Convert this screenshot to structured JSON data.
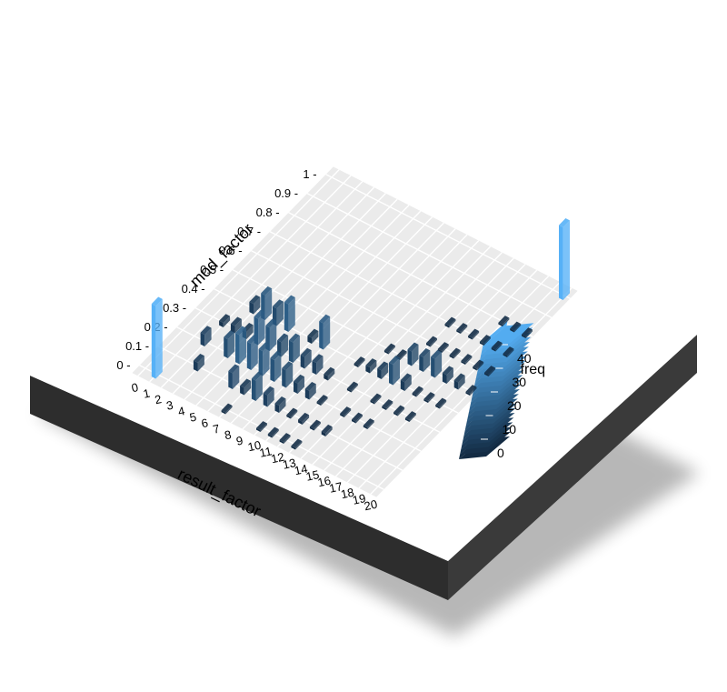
{
  "chart_data": {
    "type": "bar",
    "render": "3d-isometric",
    "xlabel": "result_factor",
    "ylabel": "mod_factor",
    "zlabel": "freq",
    "x_ticks": [
      "0",
      "1",
      "2",
      "3",
      "4",
      "5",
      "6",
      "7",
      "8",
      "9",
      "10",
      "11",
      "12",
      "13",
      "14",
      "15",
      "16",
      "17",
      "18",
      "19",
      "20"
    ],
    "y_ticks": [
      "0",
      "0.1",
      "0.2",
      "0.3",
      "0.4",
      "0.5",
      "0.6",
      "0.7",
      "0.8",
      "0.9",
      "1"
    ],
    "z_ticks": [
      "0",
      "10",
      "20",
      "30",
      "40"
    ],
    "xlim": [
      0,
      20
    ],
    "ylim": [
      0,
      1
    ],
    "zlim": [
      0,
      50
    ],
    "grid": true,
    "color_low": "#132B43",
    "color_high": "#56B1F7",
    "legend_color_scale": [
      0,
      50
    ],
    "points": [
      {
        "x": 1,
        "y": 0,
        "freq": 50
      },
      {
        "x": 2,
        "y": 0.2,
        "freq": 8
      },
      {
        "x": 2,
        "y": 0.3,
        "freq": 3
      },
      {
        "x": 3,
        "y": 0.1,
        "freq": 6
      },
      {
        "x": 3,
        "y": 0.3,
        "freq": 5
      },
      {
        "x": 3,
        "y": 0.4,
        "freq": 7
      },
      {
        "x": 4,
        "y": 0.2,
        "freq": 13
      },
      {
        "x": 4,
        "y": 0.3,
        "freq": 5
      },
      {
        "x": 4,
        "y": 0.4,
        "freq": 17
      },
      {
        "x": 5,
        "y": 0.2,
        "freq": 20
      },
      {
        "x": 5,
        "y": 0.3,
        "freq": 18
      },
      {
        "x": 5,
        "y": 0.4,
        "freq": 12
      },
      {
        "x": 6,
        "y": 0.1,
        "freq": 11
      },
      {
        "x": 6,
        "y": 0.2,
        "freq": 18
      },
      {
        "x": 6,
        "y": 0.3,
        "freq": 16
      },
      {
        "x": 6,
        "y": 0.4,
        "freq": 19
      },
      {
        "x": 7,
        "y": 0.0,
        "freq": 1
      },
      {
        "x": 7,
        "y": 0.1,
        "freq": 5
      },
      {
        "x": 7,
        "y": 0.2,
        "freq": 17
      },
      {
        "x": 7,
        "y": 0.3,
        "freq": 10
      },
      {
        "x": 8,
        "y": 0.1,
        "freq": 14
      },
      {
        "x": 8,
        "y": 0.2,
        "freq": 15
      },
      {
        "x": 8,
        "y": 0.3,
        "freq": 14
      },
      {
        "x": 8,
        "y": 0.4,
        "freq": 4
      },
      {
        "x": 9,
        "y": 0.1,
        "freq": 8
      },
      {
        "x": 9,
        "y": 0.2,
        "freq": 12
      },
      {
        "x": 9,
        "y": 0.3,
        "freq": 8
      },
      {
        "x": 9,
        "y": 0.4,
        "freq": 18
      },
      {
        "x": 10,
        "y": 0.0,
        "freq": 1
      },
      {
        "x": 10,
        "y": 0.1,
        "freq": 5
      },
      {
        "x": 10,
        "y": 0.2,
        "freq": 7
      },
      {
        "x": 10,
        "y": 0.3,
        "freq": 8
      },
      {
        "x": 11,
        "y": 0.0,
        "freq": 1
      },
      {
        "x": 11,
        "y": 0.1,
        "freq": 1
      },
      {
        "x": 11,
        "y": 0.2,
        "freq": 6
      },
      {
        "x": 11,
        "y": 0.3,
        "freq": 3
      },
      {
        "x": 12,
        "y": 0.0,
        "freq": 1
      },
      {
        "x": 12,
        "y": 0.1,
        "freq": 2
      },
      {
        "x": 12,
        "y": 0.2,
        "freq": 1
      },
      {
        "x": 12,
        "y": 0.4,
        "freq": 1
      },
      {
        "x": 13,
        "y": 0.0,
        "freq": 1
      },
      {
        "x": 13,
        "y": 0.1,
        "freq": 1
      },
      {
        "x": 13,
        "y": 0.3,
        "freq": 1
      },
      {
        "x": 13,
        "y": 0.4,
        "freq": 4
      },
      {
        "x": 13,
        "y": 0.5,
        "freq": 1
      },
      {
        "x": 14,
        "y": 0.1,
        "freq": 2
      },
      {
        "x": 14,
        "y": 0.2,
        "freq": 1
      },
      {
        "x": 14,
        "y": 0.4,
        "freq": 6
      },
      {
        "x": 14,
        "y": 0.5,
        "freq": 1
      },
      {
        "x": 15,
        "y": 0.2,
        "freq": 1
      },
      {
        "x": 15,
        "y": 0.3,
        "freq": 1
      },
      {
        "x": 15,
        "y": 0.4,
        "freq": 14
      },
      {
        "x": 15,
        "y": 0.5,
        "freq": 10
      },
      {
        "x": 16,
        "y": 0.2,
        "freq": 1
      },
      {
        "x": 16,
        "y": 0.3,
        "freq": 1
      },
      {
        "x": 16,
        "y": 0.4,
        "freq": 6
      },
      {
        "x": 16,
        "y": 0.5,
        "freq": 10
      },
      {
        "x": 17,
        "y": 0.3,
        "freq": 1
      },
      {
        "x": 17,
        "y": 0.4,
        "freq": 1
      },
      {
        "x": 17,
        "y": 0.5,
        "freq": 13
      },
      {
        "x": 18,
        "y": 0.3,
        "freq": 1
      },
      {
        "x": 18,
        "y": 0.4,
        "freq": 1
      },
      {
        "x": 18,
        "y": 0.5,
        "freq": 6
      },
      {
        "x": 19,
        "y": 0.4,
        "freq": 1
      },
      {
        "x": 19,
        "y": 0.5,
        "freq": 5
      },
      {
        "x": 20,
        "y": 0.5,
        "freq": 1
      },
      {
        "x": 15,
        "y": 0.6,
        "freq": 1
      },
      {
        "x": 16,
        "y": 0.6,
        "freq": 1
      },
      {
        "x": 17,
        "y": 0.6,
        "freq": 1
      },
      {
        "x": 18,
        "y": 0.6,
        "freq": 1
      },
      {
        "x": 19,
        "y": 0.6,
        "freq": 1
      },
      {
        "x": 20,
        "y": 0.6,
        "freq": 1
      },
      {
        "x": 15,
        "y": 0.7,
        "freq": 1
      },
      {
        "x": 16,
        "y": 0.7,
        "freq": 1
      },
      {
        "x": 17,
        "y": 0.7,
        "freq": 1
      },
      {
        "x": 18,
        "y": 0.7,
        "freq": 1
      },
      {
        "x": 19,
        "y": 0.7,
        "freq": 1
      },
      {
        "x": 20,
        "y": 0.7,
        "freq": 1
      },
      {
        "x": 18,
        "y": 0.8,
        "freq": 1
      },
      {
        "x": 19,
        "y": 0.8,
        "freq": 1
      },
      {
        "x": 20,
        "y": 0.8,
        "freq": 1
      },
      {
        "x": 20,
        "y": 1,
        "freq": 50
      }
    ]
  }
}
